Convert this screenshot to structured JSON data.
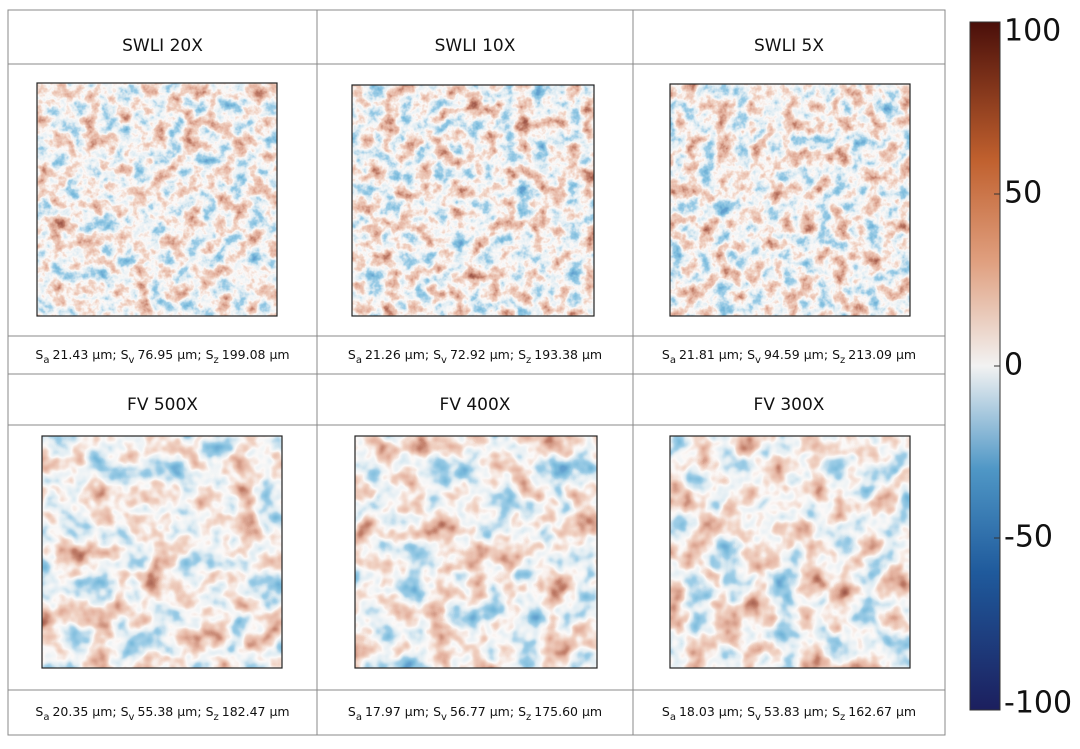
{
  "panels": [
    {
      "title": "SWLI 20X",
      "stats": [
        {
          "symbol": "S",
          "sub": "a",
          "value": "21.43 μm;"
        },
        {
          "symbol": "S",
          "sub": "v",
          "value": "76.95 μm;"
        },
        {
          "symbol": "S",
          "sub": "z",
          "value": "199.08 μm"
        }
      ]
    },
    {
      "title": "SWLI 10X",
      "stats": [
        {
          "symbol": "S",
          "sub": "a",
          "value": "21.26 μm;"
        },
        {
          "symbol": "S",
          "sub": "v",
          "value": "72.92 μm;"
        },
        {
          "symbol": "S",
          "sub": "z",
          "value": "193.38 μm"
        }
      ]
    },
    {
      "title": "SWLI 5X",
      "stats": [
        {
          "symbol": "S",
          "sub": "a",
          "value": "21.81 μm;"
        },
        {
          "symbol": "S",
          "sub": "v",
          "value": "94.59 μm;"
        },
        {
          "symbol": "S",
          "sub": "z",
          "value": "213.09 μm"
        }
      ]
    },
    {
      "title": "FV 500X",
      "stats": [
        {
          "symbol": "S",
          "sub": "a",
          "value": "20.35 μm;"
        },
        {
          "symbol": "S",
          "sub": "v",
          "value": "55.38 μm;"
        },
        {
          "symbol": "S",
          "sub": "z",
          "value": "182.47 μm"
        }
      ]
    },
    {
      "title": "FV 400X",
      "stats": [
        {
          "symbol": "S",
          "sub": "a",
          "value": "17.97 μm;"
        },
        {
          "symbol": "S",
          "sub": "v",
          "value": "56.77 μm;"
        },
        {
          "symbol": "S",
          "sub": "z",
          "value": "175.60 μm"
        }
      ]
    },
    {
      "title": "FV 300X",
      "stats": [
        {
          "symbol": "S",
          "sub": "a",
          "value": "18.03 μm;"
        },
        {
          "symbol": "S",
          "sub": "v",
          "value": "53.83 μm;"
        },
        {
          "symbol": "S",
          "sub": "z",
          "value": "162.67 μm"
        }
      ]
    }
  ],
  "colorbar": {
    "lim": [
      -100,
      100
    ],
    "ticks": [
      100,
      50,
      0,
      -50,
      -100
    ]
  }
}
